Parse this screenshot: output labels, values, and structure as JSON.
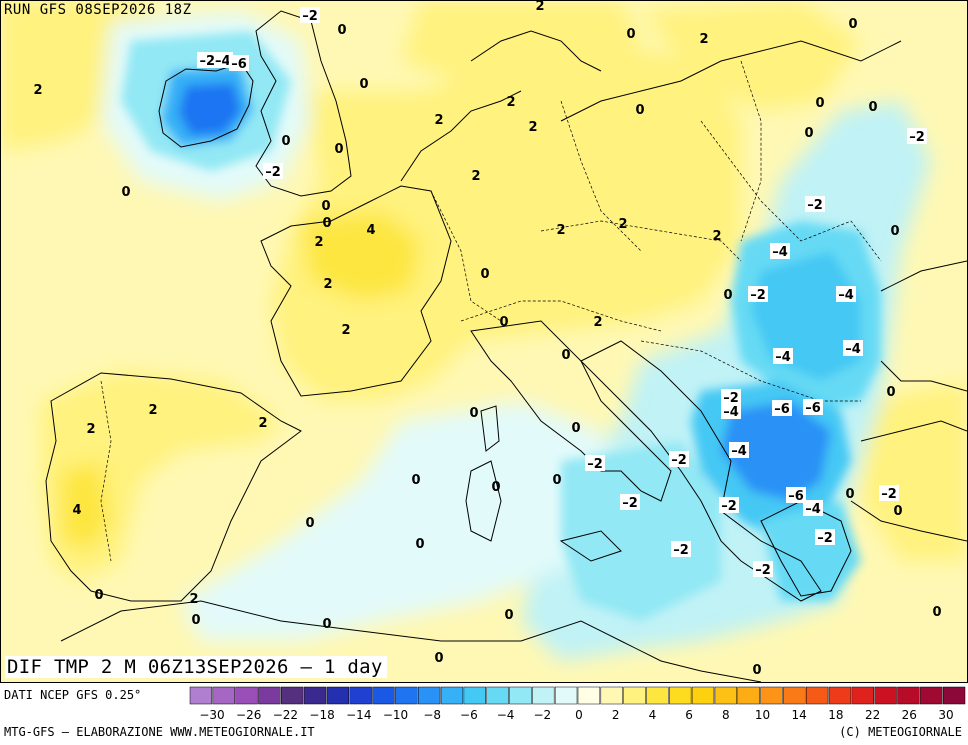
{
  "header": {
    "run_label": "RUN GFS 08SEP2026 18Z",
    "dif_label": "DIF TMP 2 M 06Z13SEP2026 — 1 day"
  },
  "footer": {
    "source": "DATI NCEP GFS 0.25°",
    "credit": "MTG-GFS — ELABORAZIONE WWW.METEOGIORNALE.IT",
    "copyright": "(C) METEOGIORNALE"
  },
  "scale": {
    "colors": [
      "#b07fd0",
      "#a666c4",
      "#9a4fb8",
      "#7a3a9e",
      "#54307e",
      "#3a2a90",
      "#2430b0",
      "#1f40d0",
      "#1a58e6",
      "#1f74f2",
      "#2a92f6",
      "#36b0f6",
      "#44c8f4",
      "#66daf4",
      "#92e8f4",
      "#c0f2f6",
      "#e2fafa",
      "#ffffe6",
      "#fff8b4",
      "#fff27e",
      "#fde640",
      "#fddc20",
      "#fdd010",
      "#fdc014",
      "#fdac16",
      "#fd9418",
      "#fb7a18",
      "#f55a16",
      "#ee3c1a",
      "#e0221e",
      "#cc1222",
      "#b60c2a",
      "#a00a32",
      "#8c0838"
    ],
    "labels": [
      "-30",
      "-26",
      "-22",
      "-18",
      "-14",
      "-10",
      "-8",
      "-6",
      "-4",
      "-2",
      "0",
      "2",
      "4",
      "6",
      "8",
      "10",
      "14",
      "18",
      "22",
      "26",
      "30"
    ]
  },
  "map_labels": [
    {
      "v": "-2"
    },
    {
      "v": "0"
    },
    {
      "v": "2"
    },
    {
      "v": "0"
    },
    {
      "v": "2"
    },
    {
      "v": "-2-4"
    },
    {
      "v": "-6"
    },
    {
      "v": "0"
    },
    {
      "v": "2"
    },
    {
      "v": "0"
    },
    {
      "v": "2"
    },
    {
      "v": "0"
    },
    {
      "v": "2"
    },
    {
      "v": "0"
    },
    {
      "v": "-2"
    },
    {
      "v": "0"
    },
    {
      "v": "2"
    },
    {
      "v": "0"
    },
    {
      "v": "-2"
    },
    {
      "v": "0"
    },
    {
      "v": "0"
    },
    {
      "v": "2"
    },
    {
      "v": "4"
    },
    {
      "v": "2"
    },
    {
      "v": "2"
    },
    {
      "v": "0"
    },
    {
      "v": "0"
    },
    {
      "v": "2"
    },
    {
      "v": "2"
    },
    {
      "v": "2"
    },
    {
      "v": "2"
    },
    {
      "v": "0"
    },
    {
      "v": "0"
    },
    {
      "v": "0"
    },
    {
      "v": "2"
    },
    {
      "v": "0"
    },
    {
      "v": "0"
    },
    {
      "v": "2"
    },
    {
      "v": "-2"
    },
    {
      "v": "-4"
    },
    {
      "v": "-4"
    },
    {
      "v": "0"
    },
    {
      "v": "-4"
    },
    {
      "v": "-4"
    },
    {
      "v": "-2"
    },
    {
      "v": "-2"
    },
    {
      "v": "-4"
    },
    {
      "v": "-6"
    },
    {
      "v": "-6"
    },
    {
      "v": "2"
    },
    {
      "v": "2"
    },
    {
      "v": "0"
    },
    {
      "v": "0"
    },
    {
      "v": "-2"
    },
    {
      "v": "-2"
    },
    {
      "v": "-4"
    },
    {
      "v": "0"
    },
    {
      "v": "0"
    },
    {
      "v": "-2"
    },
    {
      "v": "4"
    },
    {
      "v": "0"
    },
    {
      "v": "-2"
    },
    {
      "v": "-6"
    },
    {
      "v": "-4"
    },
    {
      "v": "0"
    },
    {
      "v": "0"
    },
    {
      "v": "-2"
    },
    {
      "v": "0"
    },
    {
      "v": "0"
    },
    {
      "v": "-2"
    },
    {
      "v": "-2"
    },
    {
      "v": "0"
    },
    {
      "v": "2"
    },
    {
      "v": "0"
    },
    {
      "v": "0"
    },
    {
      "v": "0"
    },
    {
      "v": "0"
    },
    {
      "v": "0"
    },
    {
      "v": "0"
    },
    {
      "v": "0"
    },
    {
      "v": "-2"
    }
  ]
}
